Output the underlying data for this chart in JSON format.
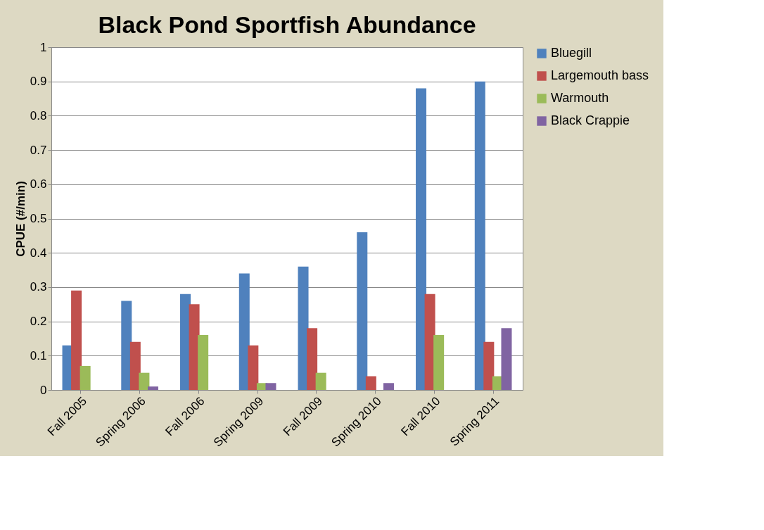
{
  "chart_data": {
    "type": "bar",
    "title": "Black Pond Sportfish Abundance",
    "ylabel": "CPUE (#/min)",
    "categories": [
      "Fall 2005",
      "Spring 2006",
      "Fall 2006",
      "Spring 2009",
      "Fall 2009",
      "Spring 2010",
      "Fall 2010",
      "Spring 2011"
    ],
    "series": [
      {
        "name": "Bluegill",
        "color": "#4f81bd",
        "values": [
          0.13,
          0.26,
          0.28,
          0.34,
          0.36,
          0.46,
          0.88,
          0.9
        ]
      },
      {
        "name": "Largemouth bass",
        "color": "#c0504d",
        "values": [
          0.29,
          0.14,
          0.25,
          0.13,
          0.18,
          0.04,
          0.28,
          0.14
        ]
      },
      {
        "name": "Warmouth",
        "color": "#9bbb59",
        "values": [
          0.07,
          0.05,
          0.16,
          0.02,
          0.05,
          null,
          0.16,
          0.04
        ]
      },
      {
        "name": "Black Crappie",
        "color": "#8064a2",
        "values": [
          null,
          0.01,
          null,
          0.02,
          null,
          0.02,
          null,
          0.18
        ]
      }
    ],
    "ylim": [
      0,
      1
    ],
    "yticks": [
      0,
      0.1,
      0.2,
      0.3,
      0.4,
      0.5,
      0.6,
      0.7,
      0.8,
      0.9,
      1
    ],
    "grid": "y",
    "legend": "right"
  }
}
